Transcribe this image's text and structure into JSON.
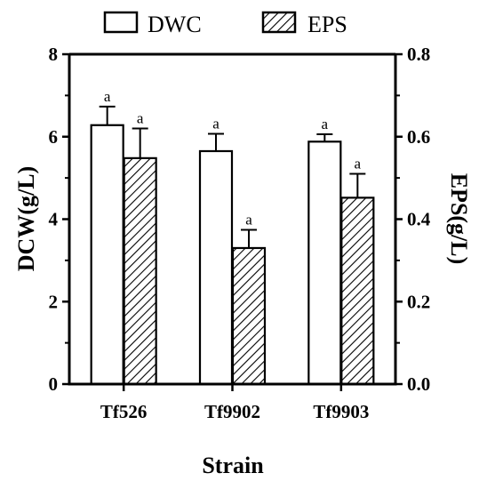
{
  "chart_data": {
    "type": "bar",
    "categories": [
      "Tf526",
      "Tf9902",
      "Tf9903"
    ],
    "xlabel": "Strain",
    "ylabel": "DCW(g/L)",
    "y2label": "EPS(g/L)",
    "ylim": [
      0,
      8
    ],
    "y2lim": [
      0,
      0.8
    ],
    "yticks": [
      "0",
      "2",
      "4",
      "6",
      "8"
    ],
    "y2ticks": [
      "0.0",
      "0.2",
      "0.4",
      "0.6",
      "0.8"
    ],
    "legend_position": "top-center",
    "grid": false,
    "series": [
      {
        "name": "DWC",
        "axis": "left",
        "fill": "#ffffff",
        "pattern": "none",
        "values": [
          6.28,
          5.65,
          5.88
        ],
        "errors": [
          0.45,
          0.42,
          0.18
        ],
        "labels": [
          "a",
          "a",
          "a"
        ]
      },
      {
        "name": "EPS",
        "axis": "right",
        "fill": "#ffffff",
        "pattern": "diagonal-hatch",
        "values": [
          0.548,
          0.33,
          0.452
        ],
        "errors": [
          0.072,
          0.044,
          0.058
        ],
        "labels": [
          "a",
          "a",
          "a"
        ]
      }
    ]
  }
}
